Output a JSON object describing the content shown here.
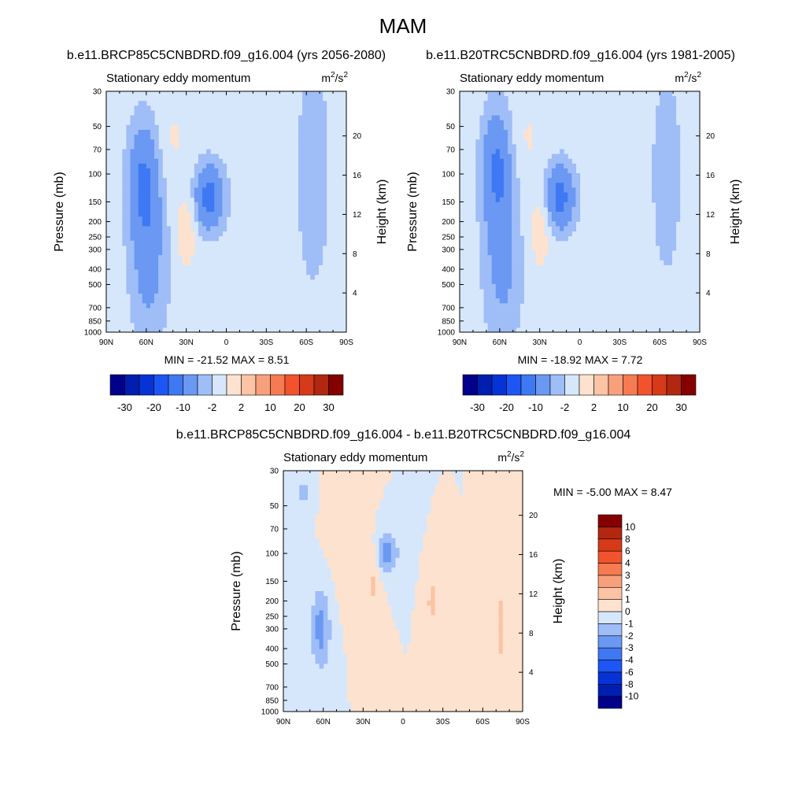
{
  "main_title": "MAM",
  "colors": {
    "panel_bg": "#d6e7fb",
    "scale_12": [
      "#00008a",
      "#001fb0",
      "#0633d6",
      "#1d56f4",
      "#3e79f3",
      "#6a98f2",
      "#9fbdf7",
      "#d6e7fb",
      "#fde2cf",
      "#fcc3a4",
      "#f8a07c",
      "#f67a52",
      "#f2532d",
      "#d63a18",
      "#b22710",
      "#850000"
    ],
    "scale_diff": [
      "#00008a",
      "#001fb0",
      "#0633d6",
      "#1d56f4",
      "#3e79f3",
      "#6a98f2",
      "#9fbdf7",
      "#d6e7fb",
      "#fde2cf",
      "#fcc3a4",
      "#f8a07c",
      "#f67a52",
      "#f2532d",
      "#d63a18",
      "#b22710",
      "#850000"
    ]
  },
  "chart_data": [
    {
      "id": "panel-1",
      "type": "heatmap",
      "title": "b.e11.BRCP85C5CNBDRD.f09_g16.004 (yrs 2056-2080)",
      "subtitle": "Stationary eddy momentum",
      "units": "m²/s²",
      "units_base": "m",
      "units_sup1": "2",
      "units_mid": "/s",
      "units_sup2": "2",
      "xlabel": "",
      "ylabel": "Pressure (mb)",
      "ylabel_right": "Height (km)",
      "x_ticks": [
        "90N",
        "60N",
        "30N",
        "0",
        "30S",
        "60S",
        "90S"
      ],
      "x_range": [
        90,
        -90
      ],
      "y_ticks": [
        30,
        50,
        70,
        100,
        150,
        200,
        250,
        300,
        400,
        500,
        700,
        850,
        1000
      ],
      "y_range_mb": [
        1000,
        30
      ],
      "height_ticks": [
        4,
        8,
        12,
        16,
        20
      ],
      "min_text": "MIN = -21.52  MAX =   8.51",
      "min": -21.52,
      "max": 8.51,
      "colorbar_labels": [
        "-30",
        "-20",
        "-10",
        "-2",
        "2",
        "10",
        "20",
        "30"
      ],
      "colorbar_levels": [
        -35,
        -30,
        -25,
        -20,
        -15,
        -10,
        -5,
        -2,
        2,
        5,
        10,
        15,
        20,
        25,
        30,
        35
      ],
      "features": [
        {
          "lat": 62,
          "p": 110,
          "value": -10,
          "spread_lat": 12,
          "spread_p": 0.9
        },
        {
          "lat": 58,
          "p": 400,
          "value": -6,
          "spread_lat": 15,
          "spread_p": 1.2
        },
        {
          "lat": 13,
          "p": 140,
          "value": -12,
          "spread_lat": 12,
          "spread_p": 0.5
        },
        {
          "lat": 30,
          "p": 220,
          "value": 5,
          "spread_lat": 8,
          "spread_p": 0.6
        },
        {
          "lat": -65,
          "p": 100,
          "value": -5,
          "spread_lat": 12,
          "spread_p": 1.6
        },
        {
          "lat": 40,
          "p": 60,
          "value": 2.5,
          "spread_lat": 12,
          "spread_p": 0.6
        }
      ]
    },
    {
      "id": "panel-2",
      "type": "heatmap",
      "title": "b.e11.B20TRC5CNBDRD.f09_g16.004 (yrs 1981-2005)",
      "subtitle": "Stationary eddy momentum",
      "units": "m²/s²",
      "units_base": "m",
      "units_sup1": "2",
      "units_mid": "/s",
      "units_sup2": "2",
      "xlabel": "",
      "ylabel": "Pressure (mb)",
      "ylabel_right": "Height (km)",
      "x_ticks": [
        "90N",
        "60N",
        "30N",
        "0",
        "30S",
        "60S",
        "90S"
      ],
      "x_range": [
        90,
        -90
      ],
      "y_ticks": [
        30,
        50,
        70,
        100,
        150,
        200,
        250,
        300,
        400,
        500,
        700,
        850,
        1000
      ],
      "y_range_mb": [
        1000,
        30
      ],
      "height_ticks": [
        4,
        8,
        12,
        16,
        20
      ],
      "min_text": "MIN = -18.92  MAX =   7.72",
      "min": -18.92,
      "max": 7.72,
      "colorbar_labels": [
        "-30",
        "-20",
        "-10",
        "-2",
        "2",
        "10",
        "20",
        "30"
      ],
      "colorbar_levels": [
        -35,
        -30,
        -25,
        -20,
        -15,
        -10,
        -5,
        -2,
        2,
        5,
        10,
        15,
        20,
        25,
        30,
        35
      ],
      "features": [
        {
          "lat": 62,
          "p": 90,
          "value": -10,
          "spread_lat": 12,
          "spread_p": 0.9
        },
        {
          "lat": 58,
          "p": 400,
          "value": -6,
          "spread_lat": 15,
          "spread_p": 1.2
        },
        {
          "lat": 15,
          "p": 140,
          "value": -12,
          "spread_lat": 12,
          "spread_p": 0.5
        },
        {
          "lat": 30,
          "p": 220,
          "value": 5,
          "spread_lat": 8,
          "spread_p": 0.6
        },
        {
          "lat": -65,
          "p": 100,
          "value": -4,
          "spread_lat": 12,
          "spread_p": 1.6
        },
        {
          "lat": 40,
          "p": 60,
          "value": 2.5,
          "spread_lat": 12,
          "spread_p": 0.6
        }
      ]
    },
    {
      "id": "panel-3",
      "type": "heatmap",
      "title": "b.e11.BRCP85C5CNBDRD.f09_g16.004 - b.e11.B20TRC5CNBDRD.f09_g16.004",
      "subtitle": "Stationary eddy momentum",
      "units": "m²/s²",
      "units_base": "m",
      "units_sup1": "2",
      "units_mid": "/s",
      "units_sup2": "2",
      "xlabel": "",
      "ylabel": "Pressure (mb)",
      "ylabel_right": "Height (km)",
      "x_ticks": [
        "90N",
        "60N",
        "30N",
        "0",
        "30S",
        "60S",
        "90S"
      ],
      "x_range": [
        90,
        -90
      ],
      "y_ticks": [
        30,
        50,
        70,
        100,
        150,
        200,
        250,
        300,
        400,
        500,
        700,
        850,
        1000
      ],
      "y_range_mb": [
        1000,
        30
      ],
      "height_ticks": [
        4,
        8,
        12,
        16,
        20
      ],
      "min_text": "MIN =  -5.00  MAX =   8.47",
      "min": -5.0,
      "max": 8.47,
      "colorbar_labels": [
        "10",
        "8",
        "6",
        "4",
        "3",
        "2",
        "1",
        "0",
        "-1",
        "-2",
        "-3",
        "-4",
        "-6",
        "-8",
        "-10"
      ],
      "colorbar_levels": [
        -12,
        -10,
        -8,
        -6,
        -4,
        -3,
        -2,
        -1,
        0,
        1,
        2,
        3,
        4,
        6,
        8,
        10,
        12
      ],
      "features": [
        {
          "lat": 62,
          "p": 300,
          "value": -2.5,
          "spread_lat": 7,
          "spread_p": 0.6
        },
        {
          "lat": 12,
          "p": 100,
          "value": -2.5,
          "spread_lat": 8,
          "spread_p": 0.3
        },
        {
          "lat": 22,
          "p": 150,
          "value": 1.2,
          "spread_lat": 5,
          "spread_p": 0.5
        },
        {
          "lat": -22,
          "p": 200,
          "value": 1.5,
          "spread_lat": 4,
          "spread_p": 0.3
        },
        {
          "lat": -73,
          "p": 300,
          "value": 1.4,
          "spread_lat": 4,
          "spread_p": 0.7
        },
        {
          "lat": 45,
          "p": 60,
          "value": 0.8,
          "spread_lat": 10,
          "spread_p": 0.8
        },
        {
          "lat": 75,
          "p": 40,
          "value": -1.2,
          "spread_lat": 6,
          "spread_p": 0.3
        }
      ]
    }
  ]
}
